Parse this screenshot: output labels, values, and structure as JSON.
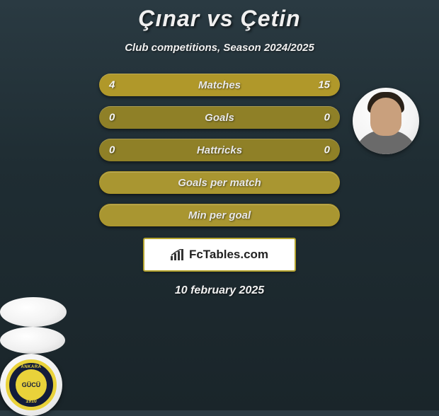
{
  "title": "Çınar vs Çetin",
  "subtitle": "Club competitions, Season 2024/2025",
  "date": "10 february 2025",
  "watermark": {
    "text": "FcTables.com"
  },
  "colors": {
    "pill_highlight": "#b0982a",
    "pill_dim": "#8f8027",
    "pill_dim_border": "#a99631",
    "text": "#e8e8e8"
  },
  "rows": [
    {
      "label": "Matches",
      "left": "4",
      "right": "15",
      "left_bg": "#b0982a",
      "right_bg": "#b0982a"
    },
    {
      "label": "Goals",
      "left": "0",
      "right": "0",
      "left_bg": "#8f8027",
      "right_bg": "#8f8027"
    },
    {
      "label": "Hattricks",
      "left": "0",
      "right": "0",
      "left_bg": "#8f8027",
      "right_bg": "#8f8027"
    },
    {
      "label": "Goals per match",
      "left": "",
      "right": "",
      "left_bg": "#a99631",
      "right_bg": "#a99631"
    },
    {
      "label": "Min per goal",
      "left": "",
      "right": "",
      "left_bg": "#a99631",
      "right_bg": "#a99631"
    }
  ],
  "badge": {
    "top_text": "ANKARA",
    "center_text": "GÜCÜ",
    "bottom_text": "1910",
    "ring_color": "#e9d23a",
    "field_color": "#131c3a"
  }
}
